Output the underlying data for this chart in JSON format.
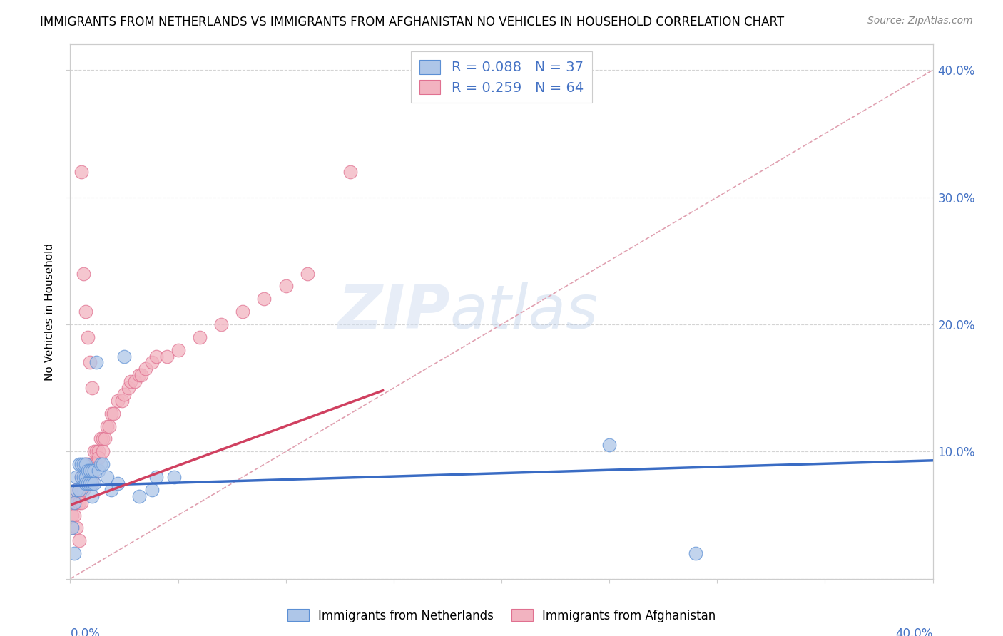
{
  "title": "IMMIGRANTS FROM NETHERLANDS VS IMMIGRANTS FROM AFGHANISTAN NO VEHICLES IN HOUSEHOLD CORRELATION CHART",
  "source": "Source: ZipAtlas.com",
  "ylabel": "No Vehicles in Household",
  "xlim": [
    0.0,
    0.4
  ],
  "ylim": [
    0.0,
    0.42
  ],
  "legend1_r": "0.088",
  "legend1_n": "37",
  "legend2_r": "0.259",
  "legend2_n": "64",
  "color_netherlands": "#aec6e8",
  "color_afghanistan": "#f2b3c0",
  "edge_netherlands": "#5b8fd4",
  "edge_afghanistan": "#e07090",
  "line_color_netherlands": "#3a6cc4",
  "line_color_afghanistan": "#d04060",
  "diag_color": "#e0a0b0",
  "text_color_blue": "#4472c4",
  "ytick_color": "#4472c4",
  "nl_line_start_x": 0.0,
  "nl_line_start_y": 0.073,
  "nl_line_end_x": 0.4,
  "nl_line_end_y": 0.093,
  "af_line_start_x": 0.0,
  "af_line_start_y": 0.058,
  "af_line_end_x": 0.145,
  "af_line_end_y": 0.148,
  "nl_x": [
    0.001,
    0.002,
    0.002,
    0.003,
    0.003,
    0.004,
    0.004,
    0.005,
    0.005,
    0.006,
    0.006,
    0.007,
    0.007,
    0.007,
    0.008,
    0.008,
    0.009,
    0.009,
    0.01,
    0.01,
    0.01,
    0.011,
    0.011,
    0.012,
    0.013,
    0.014,
    0.015,
    0.017,
    0.019,
    0.022,
    0.025,
    0.032,
    0.04,
    0.25,
    0.29,
    0.038,
    0.048
  ],
  "nl_y": [
    0.04,
    0.02,
    0.06,
    0.07,
    0.08,
    0.07,
    0.09,
    0.08,
    0.09,
    0.08,
    0.09,
    0.08,
    0.09,
    0.075,
    0.085,
    0.075,
    0.085,
    0.075,
    0.085,
    0.075,
    0.065,
    0.085,
    0.075,
    0.17,
    0.085,
    0.09,
    0.09,
    0.08,
    0.07,
    0.075,
    0.175,
    0.065,
    0.08,
    0.105,
    0.02,
    0.07,
    0.08
  ],
  "af_x": [
    0.001,
    0.001,
    0.002,
    0.002,
    0.003,
    0.003,
    0.004,
    0.004,
    0.005,
    0.005,
    0.005,
    0.006,
    0.006,
    0.007,
    0.007,
    0.008,
    0.008,
    0.009,
    0.009,
    0.01,
    0.01,
    0.01,
    0.011,
    0.011,
    0.012,
    0.012,
    0.013,
    0.013,
    0.014,
    0.015,
    0.015,
    0.016,
    0.017,
    0.018,
    0.019,
    0.02,
    0.022,
    0.024,
    0.025,
    0.027,
    0.028,
    0.03,
    0.032,
    0.033,
    0.035,
    0.038,
    0.04,
    0.045,
    0.05,
    0.06,
    0.07,
    0.08,
    0.09,
    0.1,
    0.11,
    0.13,
    0.005,
    0.006,
    0.007,
    0.008,
    0.009,
    0.01,
    0.003,
    0.004
  ],
  "af_y": [
    0.05,
    0.04,
    0.06,
    0.05,
    0.06,
    0.07,
    0.07,
    0.06,
    0.07,
    0.08,
    0.06,
    0.08,
    0.07,
    0.09,
    0.08,
    0.09,
    0.08,
    0.09,
    0.085,
    0.09,
    0.08,
    0.075,
    0.1,
    0.09,
    0.1,
    0.09,
    0.1,
    0.095,
    0.11,
    0.11,
    0.1,
    0.11,
    0.12,
    0.12,
    0.13,
    0.13,
    0.14,
    0.14,
    0.145,
    0.15,
    0.155,
    0.155,
    0.16,
    0.16,
    0.165,
    0.17,
    0.175,
    0.175,
    0.18,
    0.19,
    0.2,
    0.21,
    0.22,
    0.23,
    0.24,
    0.32,
    0.32,
    0.24,
    0.21,
    0.19,
    0.17,
    0.15,
    0.04,
    0.03
  ]
}
